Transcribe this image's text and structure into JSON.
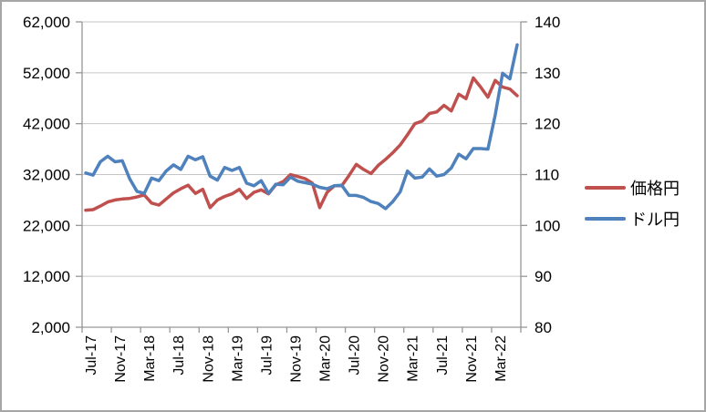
{
  "chart_data": {
    "type": "line",
    "title": "",
    "xlabel": "",
    "ylabel_left": "",
    "ylabel_right": "",
    "grid": true,
    "legend_position": "right",
    "months": [
      "Jul-17",
      "Aug-17",
      "Sep-17",
      "Oct-17",
      "Nov-17",
      "Dec-17",
      "Jan-18",
      "Feb-18",
      "Mar-18",
      "Apr-18",
      "May-18",
      "Jun-18",
      "Jul-18",
      "Aug-18",
      "Sep-18",
      "Oct-18",
      "Nov-18",
      "Dec-18",
      "Jan-19",
      "Feb-19",
      "Mar-19",
      "Apr-19",
      "May-19",
      "Jun-19",
      "Jul-19",
      "Aug-19",
      "Sep-19",
      "Oct-19",
      "Nov-19",
      "Dec-19",
      "Jan-20",
      "Feb-20",
      "Mar-20",
      "Apr-20",
      "May-20",
      "Jun-20",
      "Jul-20",
      "Aug-20",
      "Sep-20",
      "Oct-20",
      "Nov-20",
      "Dec-20",
      "Jan-21",
      "Feb-21",
      "Mar-21",
      "Apr-21",
      "May-21",
      "Jun-21",
      "Jul-21",
      "Aug-21",
      "Sep-21",
      "Oct-21",
      "Nov-21",
      "Dec-21",
      "Jan-22",
      "Feb-22",
      "Mar-22",
      "Apr-22",
      "May-22",
      "Jun-22"
    ],
    "x_tick_labels": [
      "Jul-17",
      "Nov-17",
      "Mar-18",
      "Jul-18",
      "Nov-18",
      "Mar-19",
      "Jul-19",
      "Nov-19",
      "Mar-20",
      "Jul-20",
      "Nov-20",
      "Mar-21",
      "Jul-21",
      "Nov-21",
      "Mar-22"
    ],
    "left_axis": {
      "min": 2000,
      "max": 62000,
      "step": 10000,
      "tick_labels": [
        "62,000",
        "52,000",
        "42,000",
        "32,000",
        "22,000",
        "12,000",
        "2,000"
      ]
    },
    "right_axis": {
      "min": 80,
      "max": 140,
      "step": 10,
      "tick_labels": [
        "140",
        "130",
        "120",
        "110",
        "100",
        "90",
        "80"
      ]
    },
    "series": [
      {
        "name": "価格円",
        "axis": "left",
        "color": "#C0504D",
        "values": [
          25000,
          25100,
          25800,
          26600,
          27000,
          27200,
          27300,
          27600,
          28000,
          26400,
          26000,
          27200,
          28400,
          29200,
          29900,
          28300,
          29100,
          25500,
          27000,
          27700,
          28200,
          29100,
          27300,
          28500,
          29000,
          28200,
          30000,
          30600,
          32000,
          31600,
          31200,
          30300,
          25500,
          28500,
          29800,
          29800,
          31800,
          34000,
          33000,
          32200,
          33800,
          35000,
          36300,
          37800,
          39800,
          42000,
          42500,
          44000,
          44300,
          45600,
          44500,
          47800,
          46900,
          51000,
          49200,
          47200,
          50500,
          49200,
          48800,
          47500
        ]
      },
      {
        "name": "ドル円",
        "axis": "right",
        "color": "#4F81BD",
        "values": [
          110.3,
          109.9,
          112.5,
          113.6,
          112.5,
          112.7,
          109.2,
          106.7,
          106.3,
          109.3,
          108.8,
          110.7,
          111.9,
          111.0,
          113.6,
          112.9,
          113.5,
          109.7,
          108.9,
          111.4,
          110.8,
          111.4,
          108.3,
          107.8,
          108.8,
          106.3,
          108.1,
          108.0,
          109.5,
          108.7,
          108.4,
          108.1,
          107.5,
          107.2,
          107.8,
          107.9,
          105.9,
          105.9,
          105.5,
          104.7,
          104.3,
          103.3,
          104.7,
          106.6,
          110.7,
          109.3,
          109.5,
          111.1,
          109.7,
          110.0,
          111.3,
          114.0,
          113.1,
          115.1,
          115.1,
          115.0,
          121.7,
          129.9,
          128.8,
          135.5
        ]
      }
    ],
    "colors": {
      "frame_border": "#A6A6A6",
      "axis_line": "#969696",
      "gridline": "#C6C6C6",
      "text": "#000000"
    }
  },
  "legend": {
    "items": [
      {
        "label": "価格円"
      },
      {
        "label": "ドル円"
      }
    ]
  }
}
